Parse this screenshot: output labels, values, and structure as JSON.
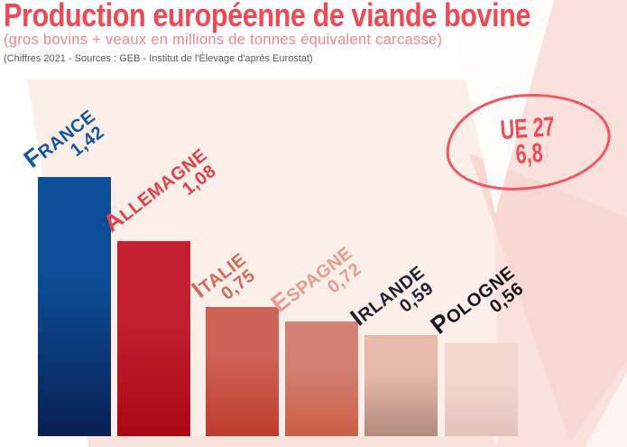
{
  "header": {
    "title": "Production européenne de viande bovine",
    "subtitle": "(gros bovins + veaux en millions de tonnes équivalent carcasse)",
    "source": "(Chiffres 2021 - Sources : GEB - Institut de l'Élevage d'après Eurostat)"
  },
  "badge": {
    "label": "UE 27",
    "value": "6,8"
  },
  "colors": {
    "title": "#ee4a55",
    "subtitle": "#f2858d",
    "source": "#58585a",
    "badge_border": "#f05560",
    "badge_text": "#ef4c57",
    "background_cream": "#fcefe9",
    "background_pink": "#fbe1db"
  },
  "chart_data": {
    "type": "bar",
    "title": "Production européenne de viande bovine",
    "subtitle": "(gros bovins + veaux en millions de tonnes équivalent carcasse)",
    "source": "(Chiffres 2021 - Sources : GEB - Institut de l'Élevage d'après Eurostat)",
    "unit": "millions de tonnes équivalent carcasse",
    "year_shown": "2021",
    "categories": [
      "France",
      "Allemagne",
      "Italie",
      "Espagne",
      "Irlande",
      "Pologne"
    ],
    "values": [
      1.42,
      1.08,
      0.75,
      0.72,
      0.59,
      0.56
    ],
    "value_labels": [
      "1,42",
      "1,08",
      "0,75",
      "0,72",
      "0,59",
      "0,56"
    ],
    "eu_total": {
      "label": "UE 27",
      "value": 6.8,
      "value_label": "6,8"
    },
    "legend": "none",
    "grid": false,
    "bars": [
      {
        "name": "France",
        "display": "FRANCE",
        "value_label": "1,42",
        "color_top": "#0c4e98",
        "color_bottom": "#0a1f55",
        "label_color": "#1356a4"
      },
      {
        "name": "Allemagne",
        "display": "ALLEMAGNE",
        "value_label": "1,08",
        "color_top": "#c42031",
        "color_bottom": "#ab0713",
        "label_color": "#e4404b"
      },
      {
        "name": "Italie",
        "display": "ITALIE",
        "value_label": "0,75",
        "color_top": "#cd6355",
        "color_bottom": "#be3c2d",
        "label_color": "#d4695a"
      },
      {
        "name": "Espagne",
        "display": "ESPAGNE",
        "value_label": "0,72",
        "color_top": "#d28172",
        "color_bottom": "#cc5f48",
        "label_color": "#e69d8e"
      },
      {
        "name": "Irlande",
        "display": "IRLANDE",
        "value_label": "0,59",
        "color_top": "#e9b9ab",
        "color_bottom": "#b18a7e",
        "label_color": "#1e2230"
      },
      {
        "name": "Pologne",
        "display": "POLOGNE",
        "value_label": "0,56",
        "color_top": "#f3d7cf",
        "color_bottom": "#e2c3bc",
        "label_color": "#15151a"
      }
    ]
  }
}
